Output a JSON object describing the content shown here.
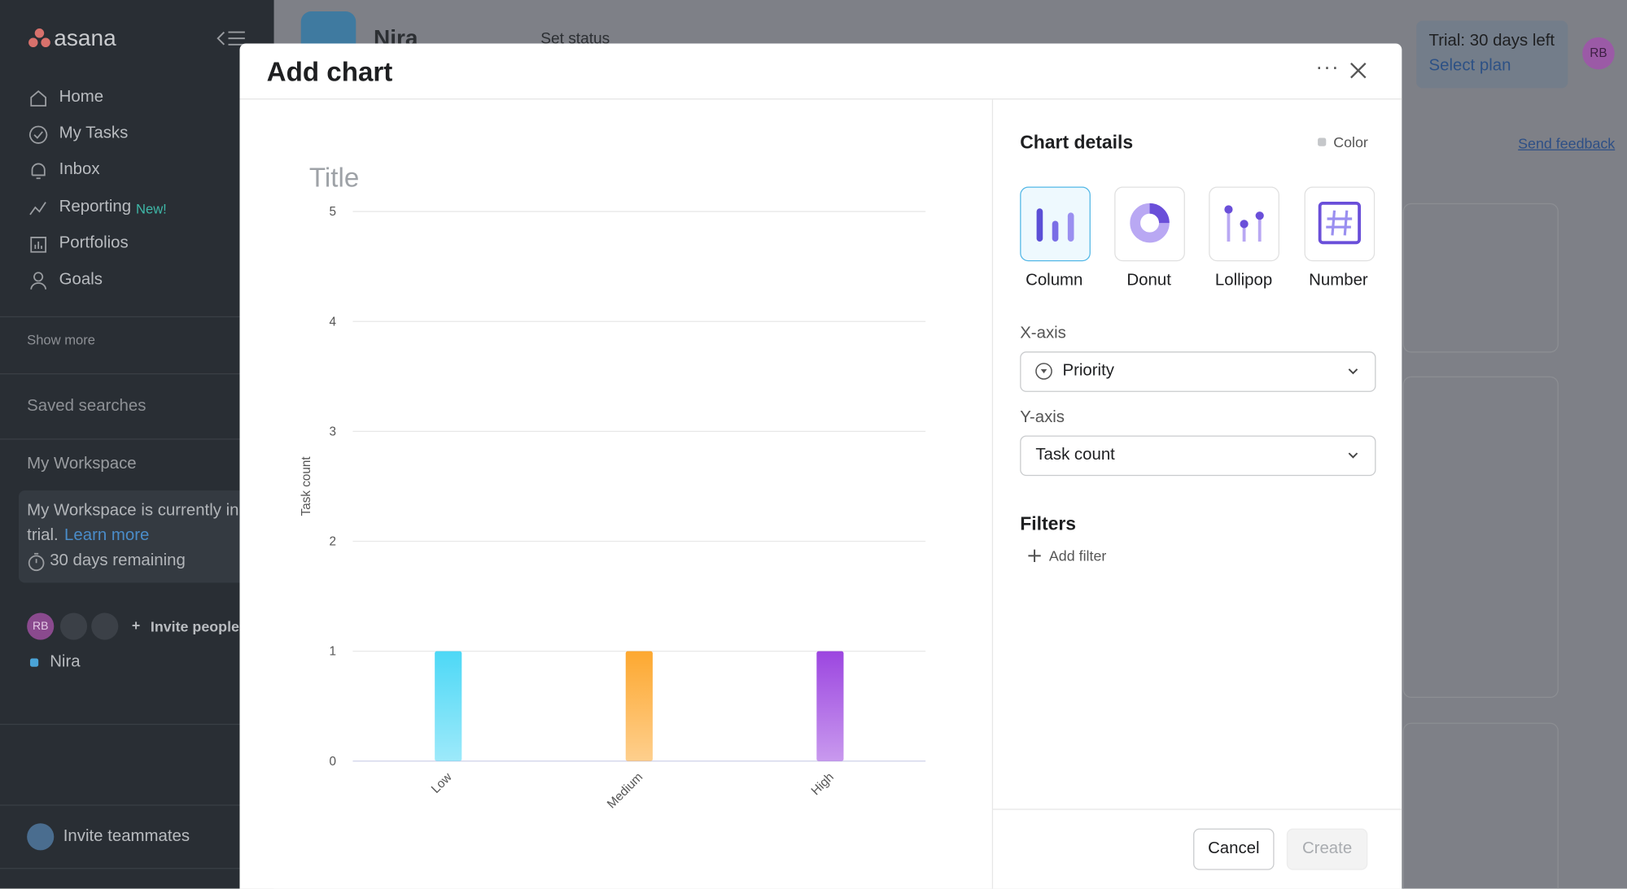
{
  "sidebar": {
    "logo": "asana",
    "nav": [
      "Home",
      "My Tasks",
      "Inbox",
      "Reporting",
      "Portfolios",
      "Goals"
    ],
    "new_badge": "New!",
    "show_more": "Show more",
    "saved_searches": "Saved searches",
    "workspace": "My Workspace",
    "trial_text": "My Workspace is currently in",
    "trial_text2": "trial.",
    "learn_more": "Learn more",
    "days_remaining": "30 days remaining",
    "avatar": "RB",
    "invite_people": "Invite people",
    "project": "Nira",
    "invite_teammates": "Invite teammates"
  },
  "header": {
    "project": "Nira",
    "set_status": "Set status",
    "trial": "Trial: 30 days left",
    "select_plan": "Select plan",
    "avatar": "RB",
    "send_feedback": "Send feedback"
  },
  "modal": {
    "title": "Add chart",
    "chart_title_placeholder": "Title",
    "details_title": "Chart details",
    "color": "Color",
    "chart_types": [
      "Column",
      "Donut",
      "Lollipop",
      "Number"
    ],
    "x_axis_label": "X-axis",
    "x_axis_value": "Priority",
    "y_axis_label": "Y-axis",
    "y_axis_value": "Task count",
    "filters": "Filters",
    "add_filter": "Add filter",
    "cancel": "Cancel",
    "create": "Create"
  },
  "chart_data": {
    "type": "bar",
    "y_label": "Task count",
    "categories": [
      "Low",
      "Medium",
      "High"
    ],
    "values": [
      1,
      1,
      1
    ],
    "colors": [
      "#4dd8f6",
      "#fda830",
      "#9c46e0"
    ],
    "ylim": [
      0,
      5
    ],
    "yticks": [
      0,
      1,
      2,
      3,
      4,
      5
    ],
    "grid": true
  }
}
